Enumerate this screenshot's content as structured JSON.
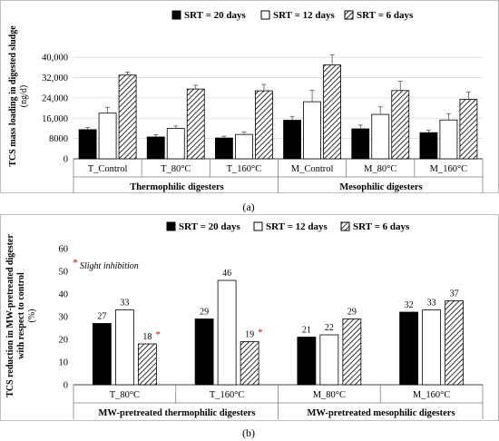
{
  "chart_data": [
    {
      "type": "bar",
      "panel_label": "(a)",
      "ylabel": "TCS mass loading in digested sludge",
      "ylabel_unit": "(ng/d)",
      "yticks": [
        "0",
        "8000",
        "16,000",
        "24,000",
        "32,000",
        "40,000"
      ],
      "ylim": [
        0,
        44000
      ],
      "categories": [
        "T_Control",
        "T_80°C",
        "T_160°C",
        "M_Control",
        "M_80°C",
        "M_160°C"
      ],
      "groups": [
        "Thermophilic digesters",
        "Mesophilic digesters"
      ],
      "legend": "top",
      "series": [
        {
          "name": "SRT = 20 days",
          "fill": "solid",
          "values": [
            11500,
            8600,
            8200,
            15200,
            11800,
            10300
          ],
          "errors": [
            800,
            900,
            700,
            1500,
            1500,
            900
          ]
        },
        {
          "name": "SRT = 12 days",
          "fill": "white",
          "values": [
            18000,
            12000,
            9600,
            22500,
            17500,
            15300
          ],
          "errors": [
            2300,
            900,
            1000,
            4500,
            3000,
            2500
          ]
        },
        {
          "name": "SRT = 6 days",
          "fill": "hatched",
          "values": [
            33000,
            27500,
            26800,
            37000,
            26900,
            23400
          ],
          "errors": [
            1200,
            1500,
            2500,
            4000,
            3700,
            3000
          ]
        }
      ]
    },
    {
      "type": "bar",
      "panel_label": "(b)",
      "ylabel_lines": [
        "TCS reduction in MW-pretreated digester",
        "with respect to control",
        "(%)"
      ],
      "yticks": [
        "0",
        "10",
        "20",
        "30",
        "40",
        "50",
        "60"
      ],
      "ylim": [
        0,
        60
      ],
      "categories": [
        "T_80°C",
        "T_160°C",
        "M_80°C",
        "M_160°C"
      ],
      "groups": [
        "MW-pretreated thermophilic digesters",
        "MW-pretreated mesophilic digesters"
      ],
      "legend": "top",
      "annotation": "Slight inhibition",
      "annotation_marker": "*",
      "series": [
        {
          "name": "SRT = 20 days",
          "fill": "solid",
          "values": [
            27,
            29,
            21,
            32
          ],
          "labels": [
            "27",
            "29",
            "21",
            "32"
          ]
        },
        {
          "name": "SRT = 12 days",
          "fill": "white",
          "values": [
            33,
            46,
            22,
            33
          ],
          "labels": [
            "33",
            "46",
            "22",
            "33"
          ]
        },
        {
          "name": "SRT = 6 days",
          "fill": "hatched",
          "values": [
            18,
            19,
            29,
            37
          ],
          "labels": [
            "18",
            "19",
            "29",
            "37"
          ],
          "starred": [
            true,
            true,
            false,
            false
          ]
        }
      ]
    }
  ]
}
